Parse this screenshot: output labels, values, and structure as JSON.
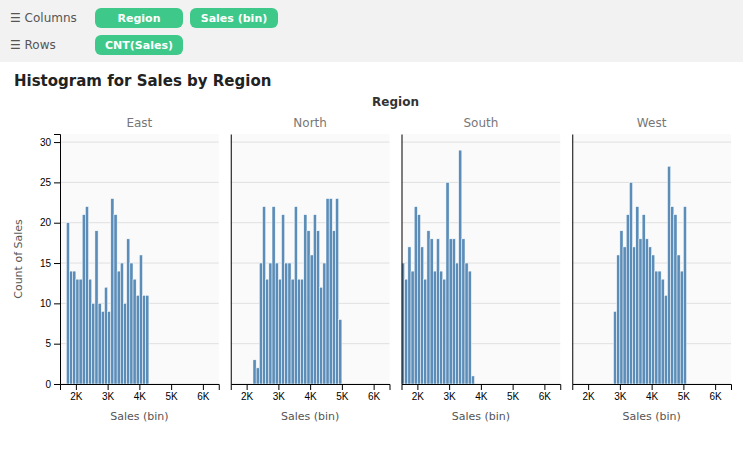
{
  "chart_data": {
    "type": "histogram",
    "title": "Histogram for Sales by Region",
    "subtitle": "Region",
    "annotations": [
      "☰ Columns",
      "Region",
      "Sales (bin)",
      "☰ Rows",
      "CNT(Sales)"
    ],
    "xlabel": "Sales (bin)",
    "ylabel": "Count of Sales",
    "color": "#5b8db8",
    "grid": true,
    "xlim": [
      1500,
      6500
    ],
    "xticks": [
      {
        "value": 2000,
        "label": "2K"
      },
      {
        "value": 3000,
        "label": "3K"
      },
      {
        "value": 4000,
        "label": "4K"
      },
      {
        "value": 5000,
        "label": "5K"
      },
      {
        "value": 6000,
        "label": "6K"
      }
    ],
    "ylim": [
      0,
      31
    ],
    "yticks": [
      0,
      5,
      10,
      15,
      20,
      25,
      30
    ],
    "series": [
      {
        "name": "East",
        "bins": [
          1700,
          1800,
          1900,
          2000,
          2100,
          2200,
          2300,
          2400,
          2500,
          2600,
          2700,
          2800,
          2900,
          3000,
          3100,
          3200,
          3300,
          3400,
          3500,
          3600,
          3700,
          3800,
          3900,
          4000,
          4100,
          4200,
          4300
        ],
        "values": [
          20,
          14,
          14,
          13,
          13,
          21,
          22,
          13,
          10,
          19,
          10,
          9,
          12,
          9,
          23,
          21,
          14,
          15,
          10,
          18,
          15,
          13,
          11,
          16,
          11,
          11
        ]
      },
      {
        "name": "North",
        "bins": [
          2200,
          2300,
          2400,
          2500,
          2600,
          2700,
          2800,
          2900,
          3000,
          3100,
          3200,
          3300,
          3400,
          3500,
          3600,
          3700,
          3800,
          3900,
          4000,
          4100,
          4200,
          4300,
          4400,
          4500,
          4600,
          4700,
          4800,
          4900,
          5000
        ],
        "values": [
          3,
          2,
          15,
          22,
          13,
          15,
          22,
          15,
          13,
          21,
          15,
          15,
          13,
          22,
          13,
          13,
          21,
          19,
          16,
          21,
          19,
          12,
          15,
          23,
          23,
          19,
          23,
          8
        ]
      },
      {
        "name": "South",
        "bins": [
          1500,
          1600,
          1700,
          1800,
          1900,
          2000,
          2100,
          2200,
          2300,
          2400,
          2500,
          2600,
          2700,
          2800,
          2900,
          3000,
          3100,
          3200,
          3300,
          3400,
          3500,
          3600,
          3700,
          3800
        ],
        "values": [
          15,
          13,
          17,
          14,
          22,
          21,
          17,
          13,
          19,
          18,
          14,
          18,
          14,
          13,
          25,
          18,
          18,
          15,
          29,
          18,
          15,
          14,
          1
        ]
      },
      {
        "name": "West",
        "bins": [
          2800,
          2900,
          3000,
          3100,
          3200,
          3300,
          3400,
          3500,
          3600,
          3700,
          3800,
          3900,
          4000,
          4100,
          4200,
          4300,
          4400,
          4500,
          4600,
          4700,
          4800,
          4900,
          5000,
          5100
        ],
        "values": [
          9,
          16,
          19,
          17,
          21,
          25,
          17,
          22,
          18,
          21,
          18,
          17,
          16,
          14,
          14,
          13,
          11,
          27,
          22,
          21,
          16,
          14,
          22
        ]
      }
    ]
  }
}
